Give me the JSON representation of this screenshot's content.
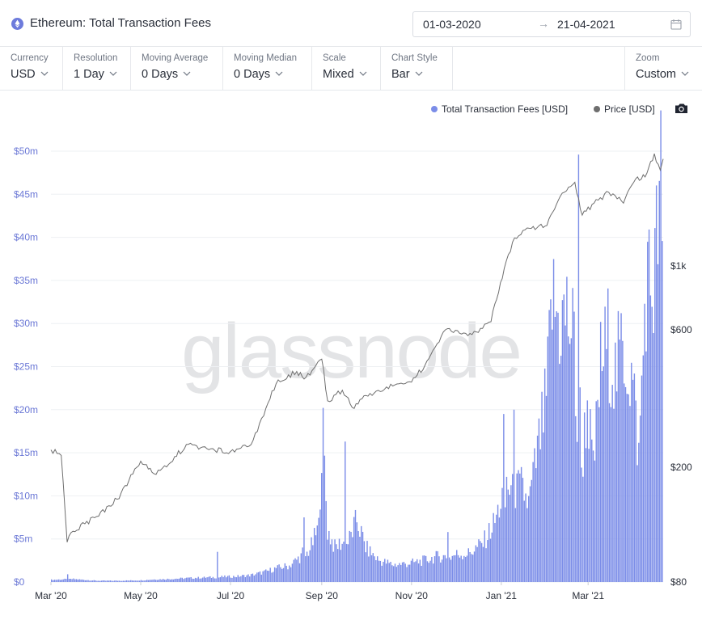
{
  "header": {
    "title": "Ethereum: Total Transaction Fees",
    "date_from": "01-03-2020",
    "date_to": "21-04-2021",
    "arrow": "→"
  },
  "controls": [
    {
      "label": "Currency",
      "value": "USD"
    },
    {
      "label": "Resolution",
      "value": "1 Day"
    },
    {
      "label": "Moving Average",
      "value": "0 Days"
    },
    {
      "label": "Moving Median",
      "value": "0 Days"
    },
    {
      "label": "Scale",
      "value": "Mixed"
    },
    {
      "label": "Chart Style",
      "value": "Bar"
    }
  ],
  "zoom": {
    "label": "Zoom",
    "value": "Custom"
  },
  "legend": {
    "fees_label": "Total Transaction Fees [USD]",
    "price_label": "Price [USD]"
  },
  "watermark": "glassnode",
  "icons": {
    "logo": "ethereum-icon",
    "calendar": "calendar-icon",
    "chevron": "chevron-down-icon",
    "camera": "camera-icon"
  },
  "colors": {
    "fees": "#7b8de8",
    "price": "#6e6e6e",
    "left_axis": "#6b78d6"
  },
  "chart_data": {
    "type": "bar",
    "x_start": "2020-03-01",
    "x_end": "2021-04-21",
    "x_tick_labels": [
      "Mar '20",
      "May '20",
      "Jul '20",
      "Sep '20",
      "Nov '20",
      "Jan '21",
      "Mar '21"
    ],
    "x_tick_dates": [
      "2020-03-01",
      "2020-05-01",
      "2020-07-01",
      "2020-09-01",
      "2020-11-01",
      "2021-01-01",
      "2021-03-01"
    ],
    "left_axis": {
      "scale": "linear",
      "range": [
        0,
        50000000
      ],
      "ticks": [
        0,
        5000000,
        10000000,
        15000000,
        20000000,
        25000000,
        30000000,
        35000000,
        40000000,
        45000000,
        50000000
      ],
      "tick_labels": [
        "$0",
        "$5m",
        "$10m",
        "$15m",
        "$20m",
        "$25m",
        "$30m",
        "$35m",
        "$40m",
        "$45m",
        "$50m"
      ]
    },
    "right_axis": {
      "scale": "log",
      "range": [
        80,
        2500
      ],
      "ticks": [
        80,
        200,
        600,
        1000
      ],
      "tick_labels": [
        "$80",
        "$200",
        "$600",
        "$1k"
      ]
    },
    "grid": "horizontal",
    "legend_position": "top-right",
    "series": [
      {
        "name": "Total Transaction Fees [USD]",
        "type": "bar",
        "axis": "left",
        "points": [
          [
            "2020-03-01",
            250000
          ],
          [
            "2020-03-08",
            300000
          ],
          [
            "2020-03-12",
            900000
          ],
          [
            "2020-03-15",
            350000
          ],
          [
            "2020-04-01",
            150000
          ],
          [
            "2020-04-15",
            150000
          ],
          [
            "2020-05-01",
            200000
          ],
          [
            "2020-05-10",
            300000
          ],
          [
            "2020-05-20",
            350000
          ],
          [
            "2020-06-01",
            450000
          ],
          [
            "2020-06-10",
            500000
          ],
          [
            "2020-06-18",
            550000
          ],
          [
            "2020-06-22",
            3500000
          ],
          [
            "2020-06-25",
            600000
          ],
          [
            "2020-07-05",
            650000
          ],
          [
            "2020-07-15",
            800000
          ],
          [
            "2020-07-25",
            1200000
          ],
          [
            "2020-08-01",
            1600000
          ],
          [
            "2020-08-10",
            1900000
          ],
          [
            "2020-08-18",
            3000000
          ],
          [
            "2020-08-20",
            7500000
          ],
          [
            "2020-08-25",
            4200000
          ],
          [
            "2020-08-30",
            6400000
          ],
          [
            "2020-09-01",
            16000000
          ],
          [
            "2020-09-02",
            16800000
          ],
          [
            "2020-09-05",
            6000000
          ],
          [
            "2020-09-10",
            4000000
          ],
          [
            "2020-09-14",
            4500000
          ],
          [
            "2020-09-17",
            16300000
          ],
          [
            "2020-09-20",
            5000000
          ],
          [
            "2020-09-25",
            7200000
          ],
          [
            "2020-10-01",
            4000000
          ],
          [
            "2020-10-10",
            2500000
          ],
          [
            "2020-10-20",
            2000000
          ],
          [
            "2020-11-01",
            2200000
          ],
          [
            "2020-11-10",
            2500000
          ],
          [
            "2020-11-20",
            3000000
          ],
          [
            "2020-11-26",
            5800000
          ],
          [
            "2020-12-01",
            3200000
          ],
          [
            "2020-12-10",
            3300000
          ],
          [
            "2020-12-20",
            4500000
          ],
          [
            "2020-12-28",
            7000000
          ],
          [
            "2021-01-03",
            19500000
          ],
          [
            "2021-01-05",
            11500000
          ],
          [
            "2021-01-10",
            20000000
          ],
          [
            "2021-01-15",
            11000000
          ],
          [
            "2021-01-20",
            9000000
          ],
          [
            "2021-01-25",
            14000000
          ],
          [
            "2021-02-01",
            21000000
          ],
          [
            "2021-02-05",
            32500000
          ],
          [
            "2021-02-10",
            30000000
          ],
          [
            "2021-02-15",
            31000000
          ],
          [
            "2021-02-20",
            28000000
          ],
          [
            "2021-02-23",
            49600000
          ],
          [
            "2021-02-25",
            13300000
          ],
          [
            "2021-03-01",
            21000000
          ],
          [
            "2021-03-05",
            12500000
          ],
          [
            "2021-03-10",
            25000000
          ],
          [
            "2021-03-15",
            28000000
          ],
          [
            "2021-03-20",
            24000000
          ],
          [
            "2021-03-25",
            27500000
          ],
          [
            "2021-04-01",
            23000000
          ],
          [
            "2021-04-05",
            14500000
          ],
          [
            "2021-04-10",
            35000000
          ],
          [
            "2021-04-15",
            34000000
          ],
          [
            "2021-04-20",
            46000000
          ],
          [
            "2021-04-21",
            35000000
          ]
        ]
      },
      {
        "name": "Price [USD]",
        "type": "line",
        "axis": "right",
        "points": [
          [
            "2020-03-01",
            230
          ],
          [
            "2020-03-08",
            220
          ],
          [
            "2020-03-12",
            110
          ],
          [
            "2020-03-16",
            120
          ],
          [
            "2020-04-01",
            135
          ],
          [
            "2020-04-15",
            155
          ],
          [
            "2020-05-01",
            210
          ],
          [
            "2020-05-10",
            190
          ],
          [
            "2020-05-20",
            205
          ],
          [
            "2020-06-01",
            240
          ],
          [
            "2020-06-15",
            232
          ],
          [
            "2020-07-01",
            227
          ],
          [
            "2020-07-15",
            240
          ],
          [
            "2020-07-25",
            320
          ],
          [
            "2020-08-01",
            390
          ],
          [
            "2020-08-15",
            430
          ],
          [
            "2020-08-20",
            405
          ],
          [
            "2020-09-01",
            475
          ],
          [
            "2020-09-05",
            340
          ],
          [
            "2020-09-15",
            370
          ],
          [
            "2020-09-23",
            320
          ],
          [
            "2020-10-01",
            355
          ],
          [
            "2020-10-15",
            380
          ],
          [
            "2020-11-01",
            395
          ],
          [
            "2020-11-10",
            450
          ],
          [
            "2020-11-24",
            600
          ],
          [
            "2020-12-05",
            580
          ],
          [
            "2020-12-15",
            590
          ],
          [
            "2020-12-25",
            640
          ],
          [
            "2021-01-03",
            980
          ],
          [
            "2021-01-10",
            1250
          ],
          [
            "2021-01-20",
            1350
          ],
          [
            "2021-02-01",
            1380
          ],
          [
            "2021-02-10",
            1740
          ],
          [
            "2021-02-20",
            1950
          ],
          [
            "2021-02-25",
            1500
          ],
          [
            "2021-03-05",
            1650
          ],
          [
            "2021-03-15",
            1800
          ],
          [
            "2021-03-25",
            1650
          ],
          [
            "2021-04-01",
            1950
          ],
          [
            "2021-04-10",
            2100
          ],
          [
            "2021-04-15",
            2450
          ],
          [
            "2021-04-19",
            2150
          ],
          [
            "2021-04-21",
            2350
          ]
        ]
      }
    ]
  }
}
